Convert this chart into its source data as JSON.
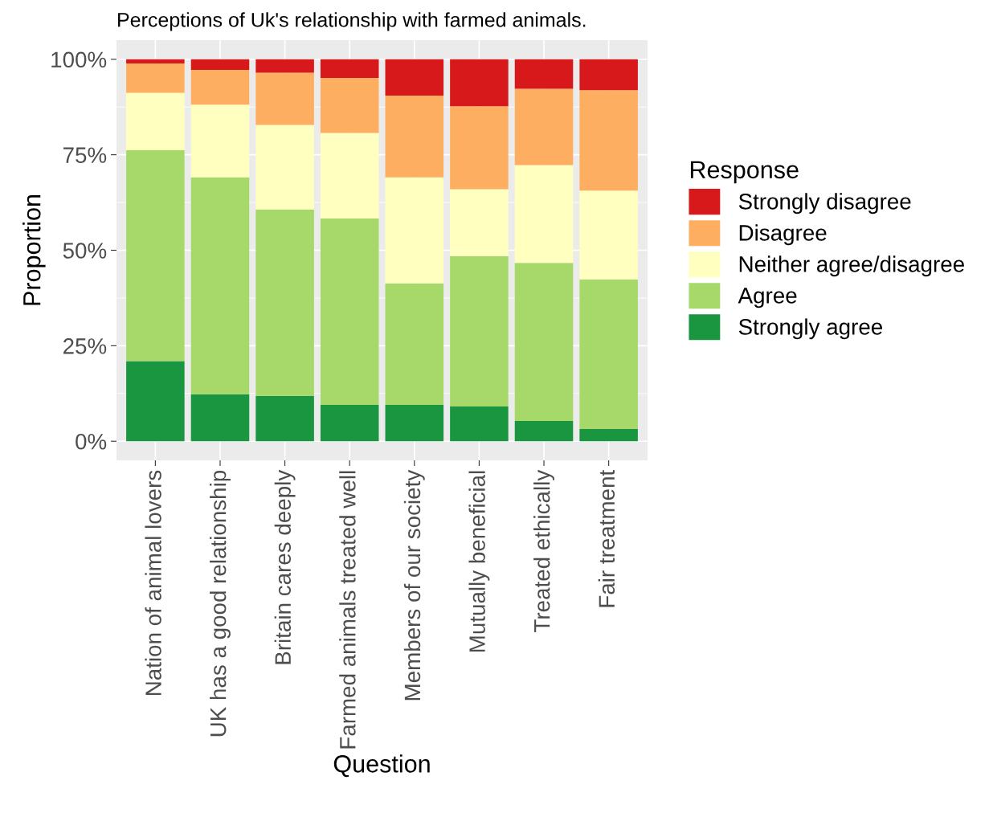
{
  "chart_data": {
    "type": "bar",
    "stacked": true,
    "title": "Perceptions of Uk's relationship with farmed animals.",
    "xlabel": "Question",
    "ylabel": "Proportion",
    "legend_title": "Response",
    "categories": [
      "Nation of animal lovers",
      "UK has a good relationship",
      "Britain cares deeply",
      "Farmed animals treated well",
      "Members of our society",
      "Mutually beneficial",
      "Treated ethically",
      "Fair treatment"
    ],
    "series": [
      {
        "name": "Strongly agree",
        "color": "#1a9641",
        "values": [
          21.0,
          12.3,
          11.9,
          9.5,
          9.5,
          9.1,
          5.3,
          3.2
        ]
      },
      {
        "name": "Agree",
        "color": "#a6d96a",
        "values": [
          55.2,
          56.8,
          48.8,
          48.8,
          31.8,
          39.4,
          41.4,
          39.2
        ]
      },
      {
        "name": "Neither agree/disagree",
        "color": "#ffffbf",
        "values": [
          15.0,
          19.0,
          22.1,
          22.4,
          27.8,
          17.5,
          25.6,
          23.2
        ]
      },
      {
        "name": "Disagree",
        "color": "#fdae61",
        "values": [
          7.7,
          9.1,
          13.7,
          14.4,
          21.4,
          21.7,
          20.0,
          26.3
        ]
      },
      {
        "name": "Strongly disagree",
        "color": "#d7191c",
        "values": [
          1.1,
          2.8,
          3.5,
          4.9,
          9.5,
          12.3,
          7.7,
          8.1
        ]
      }
    ],
    "ylim": [
      -5,
      105
    ],
    "yticks": [
      {
        "value": 0,
        "label": "0%"
      },
      {
        "value": 25,
        "label": "25%"
      },
      {
        "value": 50,
        "label": "50%"
      },
      {
        "value": 75,
        "label": "75%"
      },
      {
        "value": 100,
        "label": "100%"
      }
    ],
    "grid": true,
    "legend": "right"
  }
}
